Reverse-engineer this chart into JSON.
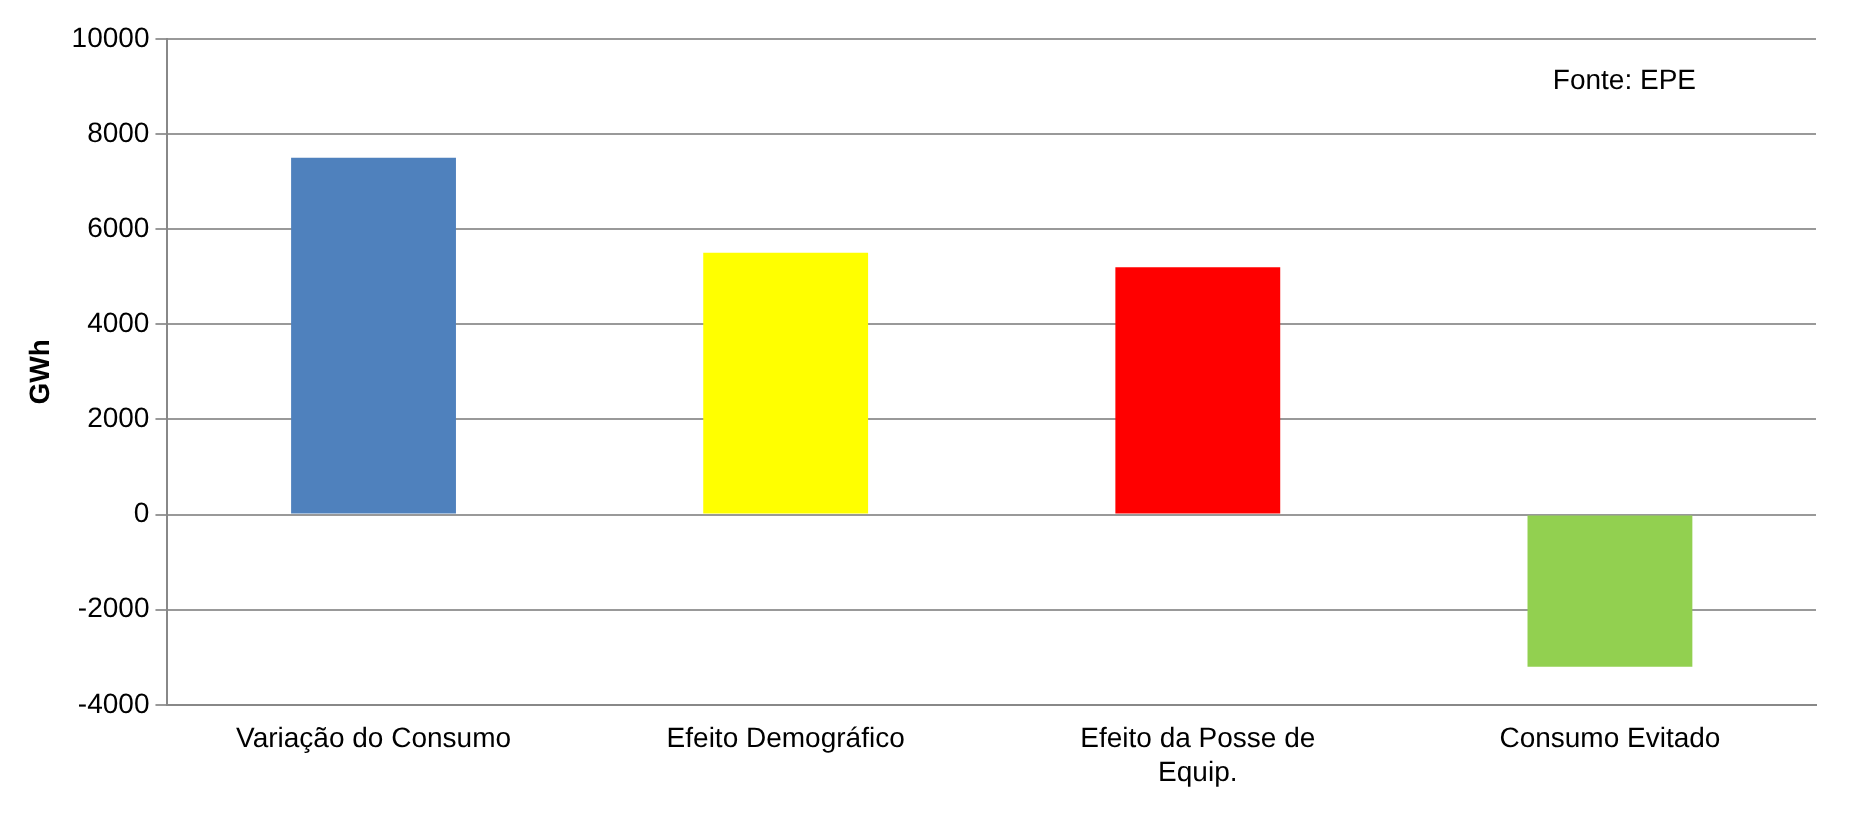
{
  "chart_data": {
    "type": "bar",
    "ylabel": "GWh",
    "categories": [
      "Variação do Consumo",
      "Efeito Demográfico",
      "Efeito da Posse de Equip.",
      "Consumo Evitado"
    ],
    "values": [
      7500,
      5500,
      5200,
      -3200
    ],
    "colors": [
      "#4f81bd",
      "#ffff00",
      "#ff0000",
      "#92d050"
    ],
    "ylim": [
      -4000,
      10000
    ],
    "yticks": [
      -4000,
      -2000,
      0,
      2000,
      4000,
      6000,
      8000,
      10000
    ],
    "grid": "y",
    "legend": false,
    "annotations": [
      "Fonte: EPE"
    ]
  }
}
